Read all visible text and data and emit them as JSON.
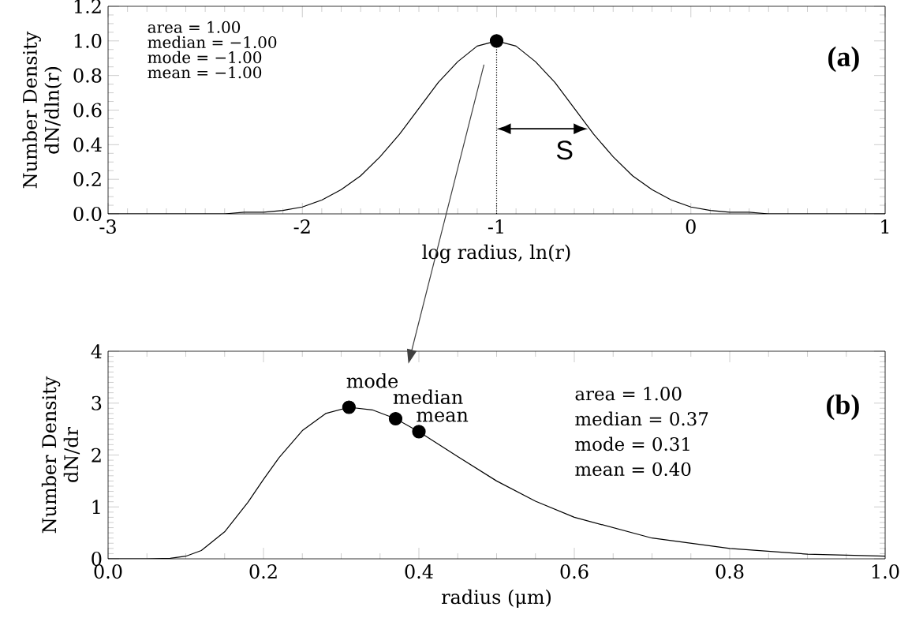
{
  "chart_data": [
    {
      "type": "line",
      "title": "(a)",
      "xlabel": "log radius, ln(r)",
      "ylabel": "Number Density dN/dln(r)",
      "xlim": [
        -3,
        1
      ],
      "xticks": [
        -3,
        -2,
        -1,
        0,
        1
      ],
      "ylim": [
        0,
        1.2
      ],
      "yticks": [
        {
          "value": 0,
          "label": "0.0"
        },
        {
          "value": 0.2,
          "label": "0.2"
        },
        {
          "value": 0.4,
          "label": "0.4"
        },
        {
          "value": 0.6,
          "label": "0.6"
        },
        {
          "value": 0.8,
          "label": "0.8"
        },
        {
          "value": 1.0,
          "label": "1.0"
        },
        {
          "value": 1.2,
          "label": "1.2"
        }
      ],
      "series": [
        {
          "type": "line",
          "color": "#000000",
          "x": [
            -3,
            -2.9,
            -2.8,
            -2.7,
            -2.6,
            -2.5,
            -2.4,
            -2.3,
            -2.2,
            -2.1,
            -2.0,
            -1.9,
            -1.8,
            -1.7,
            -1.6,
            -1.5,
            -1.4,
            -1.3,
            -1.2,
            -1.1,
            -1.0,
            -0.9,
            -0.8,
            -0.7,
            -0.6,
            -0.5,
            -0.4,
            -0.3,
            -0.2,
            -0.1,
            0.0,
            0.1,
            0.2,
            0.3,
            0.4,
            0.5,
            0.6,
            0.7,
            0.8,
            0.9,
            1.0
          ],
          "values": [
            0,
            0,
            0,
            0,
            0,
            0,
            0,
            0.01,
            0.01,
            0.02,
            0.04,
            0.08,
            0.14,
            0.22,
            0.33,
            0.46,
            0.61,
            0.76,
            0.88,
            0.97,
            1.0,
            0.97,
            0.88,
            0.76,
            0.61,
            0.46,
            0.33,
            0.22,
            0.14,
            0.08,
            0.04,
            0.02,
            0.01,
            0.01,
            0,
            0,
            0,
            0,
            0,
            0,
            0
          ]
        },
        {
          "type": "scatter",
          "marker": "circle",
          "color": "#000000",
          "x": [
            -1
          ],
          "values": [
            1.0
          ]
        }
      ],
      "ref_lines": [
        {
          "axis": "x",
          "value": -1,
          "line_style": "dotted",
          "color": "#000000"
        }
      ],
      "annotations": [
        "area = 1.00",
        "median = −1.00",
        "mode = −1.00",
        "mean = −1.00",
        "S"
      ]
    },
    {
      "type": "line",
      "title": "(b)",
      "xlabel": "radius (μm)",
      "ylabel": "Number Density dN/dr",
      "xlim": [
        0,
        1
      ],
      "xticks": [
        {
          "value": 0,
          "label": "0.0"
        },
        {
          "value": 0.2,
          "label": "0.2"
        },
        {
          "value": 0.4,
          "label": "0.4"
        },
        {
          "value": 0.6,
          "label": "0.6"
        },
        {
          "value": 0.8,
          "label": "0.8"
        },
        {
          "value": 1.0,
          "label": "1.0"
        }
      ],
      "ylim": [
        0,
        4
      ],
      "yticks": [
        0,
        1,
        2,
        3,
        4
      ],
      "series": [
        {
          "type": "line",
          "color": "#000000",
          "x": [
            0,
            0.05,
            0.08,
            0.1,
            0.12,
            0.15,
            0.18,
            0.2,
            0.22,
            0.25,
            0.28,
            0.31,
            0.34,
            0.37,
            0.4,
            0.45,
            0.5,
            0.55,
            0.6,
            0.7,
            0.8,
            0.9,
            1.0
          ],
          "values": [
            0,
            0,
            0.01,
            0.05,
            0.16,
            0.52,
            1.09,
            1.53,
            1.95,
            2.47,
            2.8,
            2.92,
            2.87,
            2.7,
            2.45,
            1.97,
            1.5,
            1.11,
            0.8,
            0.4,
            0.2,
            0.09,
            0.05
          ]
        },
        {
          "type": "scatter",
          "marker": "circle",
          "color": "#000000",
          "x": [
            0.31,
            0.37,
            0.4
          ],
          "values": [
            2.92,
            2.7,
            2.45
          ]
        }
      ],
      "annotations": [
        "area = 1.00",
        "median = 0.37",
        "mode = 0.31",
        "mean = 0.40",
        {
          "text": "mode",
          "x": 0.31,
          "y": 2.92
        },
        {
          "text": "median",
          "x": 0.37,
          "y": 2.7
        },
        {
          "text": "mean",
          "x": 0.4,
          "y": 2.45
        }
      ]
    }
  ]
}
